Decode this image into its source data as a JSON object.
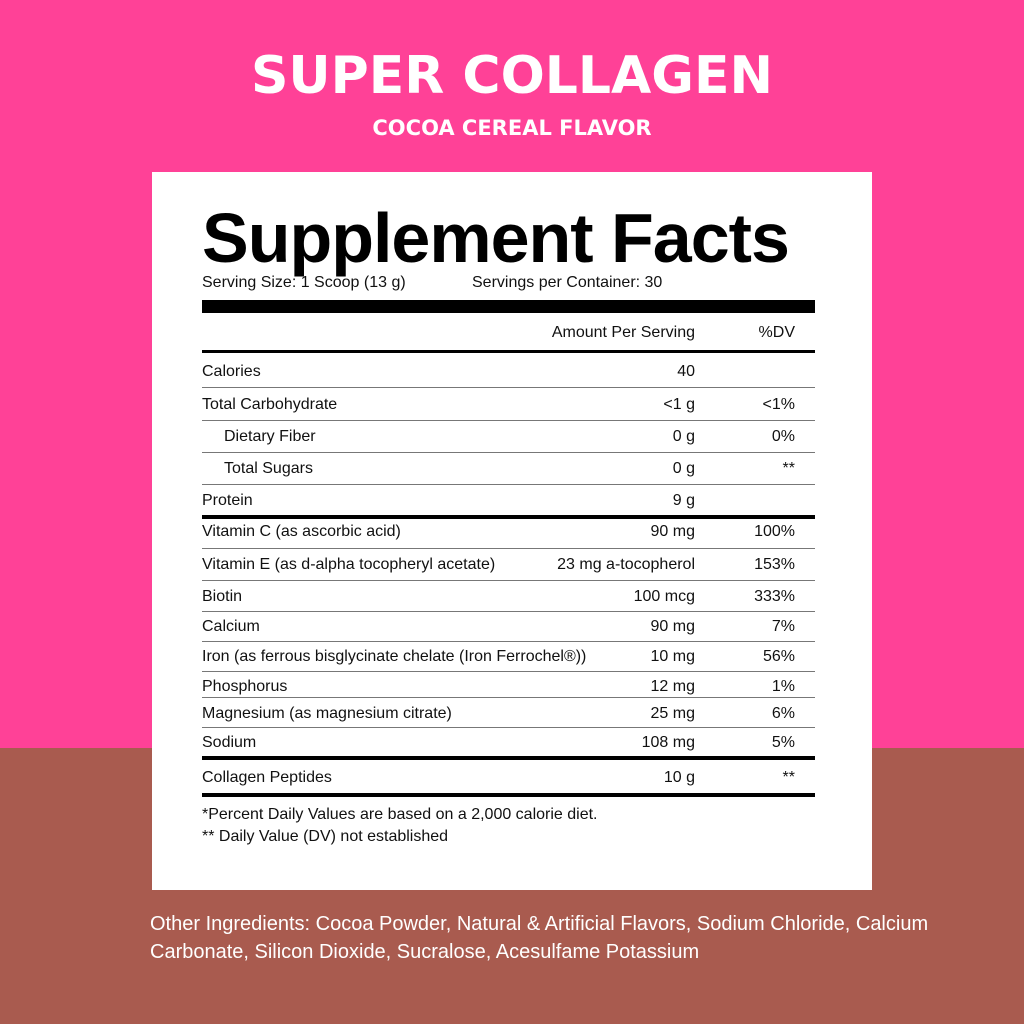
{
  "header": {
    "title": "SUPER COLLAGEN",
    "subtitle": "COCOA CEREAL FLAVOR"
  },
  "facts": {
    "heading": "Supplement Facts",
    "serving_size": "Serving Size: 1 Scoop (13 g)",
    "servings_per_container": "Servings per Container: 30",
    "col_amount": "Amount Per Serving",
    "col_dv": "%DV",
    "rows": [
      {
        "name": "Calories",
        "amount": "40",
        "dv": ""
      },
      {
        "name": "Total Carbohydrate",
        "amount": "<1 g",
        "dv": "<1%"
      },
      {
        "name": "Dietary Fiber",
        "amount": "0 g",
        "dv": "0%"
      },
      {
        "name": "Total Sugars",
        "amount": "0 g",
        "dv": "**"
      },
      {
        "name": "Protein",
        "amount": "9 g",
        "dv": ""
      },
      {
        "name": "Vitamin C (as ascorbic acid)",
        "amount": "90 mg",
        "dv": "100%"
      },
      {
        "name": "Vitamin E (as d-alpha tocopheryl acetate)",
        "amount": "23 mg a-tocopherol",
        "dv": "153%"
      },
      {
        "name": "Biotin",
        "amount": "100 mcg",
        "dv": "333%"
      },
      {
        "name": "Calcium",
        "amount": "90 mg",
        "dv": "7%"
      },
      {
        "name": "Iron (as ferrous bisglycinate chelate (Iron Ferrochel®))",
        "amount": "10 mg",
        "dv": "56%"
      },
      {
        "name": "Phosphorus",
        "amount": "12 mg",
        "dv": "1%"
      },
      {
        "name": "Magnesium (as magnesium citrate)",
        "amount": "25 mg",
        "dv": "6%"
      },
      {
        "name": "Sodium",
        "amount": "108 mg",
        "dv": "5%"
      },
      {
        "name": "Collagen Peptides",
        "amount": "10 g",
        "dv": "**"
      }
    ],
    "footnote1": "*Percent Daily Values are based on a 2,000 calorie diet.",
    "footnote2": "** Daily Value (DV) not established"
  },
  "ingredients": "Other Ingredients: Cocoa Powder, Natural & Artificial Flavors, Sodium Chloride, Calcium Carbonate, Silicon Dioxide, Sucralose, Acesulfame Potassium",
  "colors": {
    "pink": "#ff4197",
    "brown": "#a95b4f"
  }
}
